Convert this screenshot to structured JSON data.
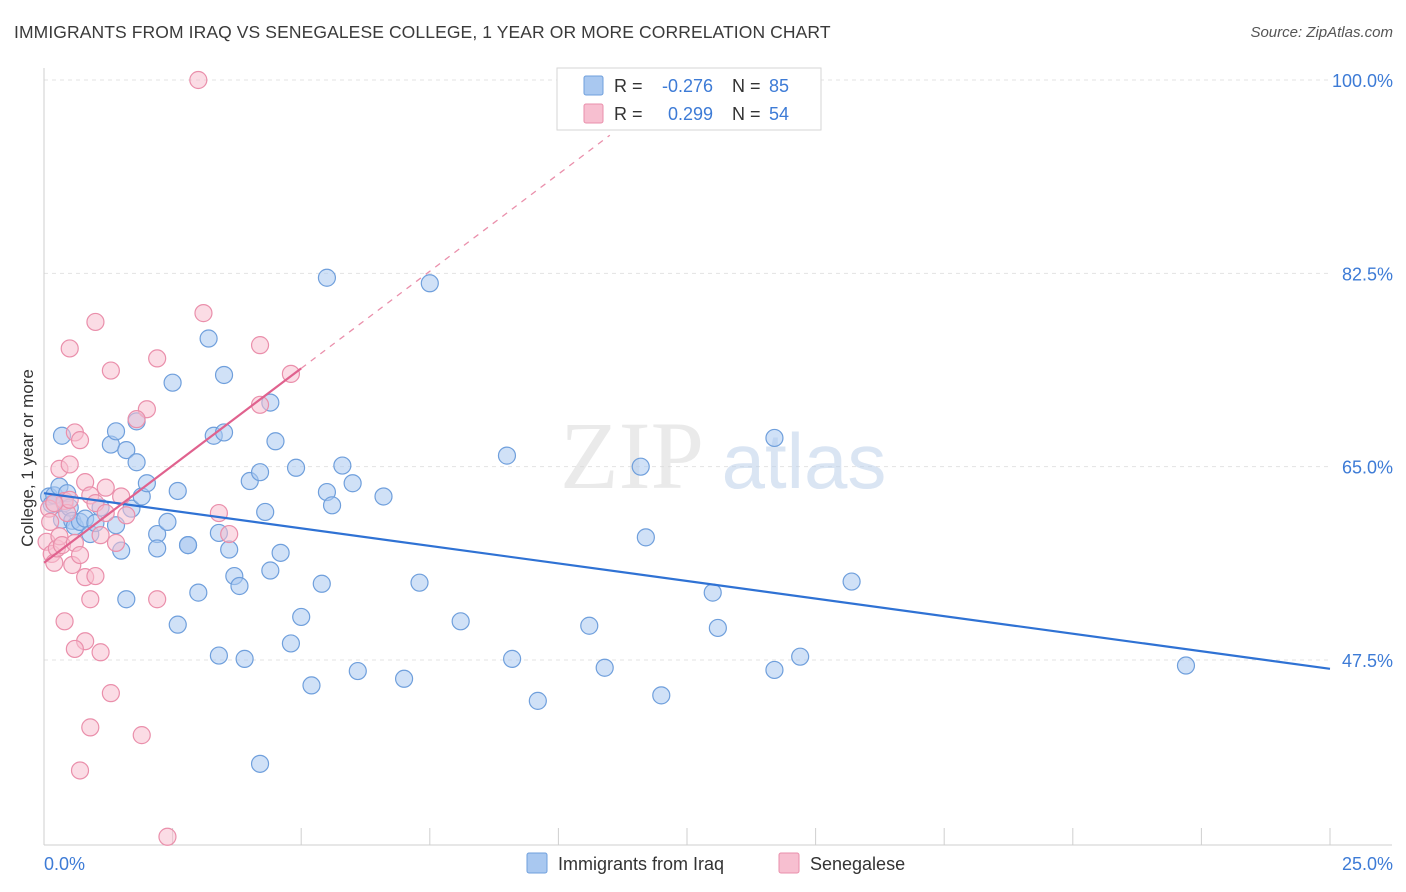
{
  "header": {
    "title": "IMMIGRANTS FROM IRAQ VS SENEGALESE COLLEGE, 1 YEAR OR MORE CORRELATION CHART",
    "source": "Source: ZipAtlas.com"
  },
  "watermark": {
    "zip": "ZIP",
    "atlas": "atlas"
  },
  "legend_box": {
    "rows": [
      {
        "r_label": "R = ",
        "r_value": "-0.276",
        "n_label": "N = ",
        "n_value": "85"
      },
      {
        "r_label": "R = ",
        "r_value": "0.299",
        "n_label": "N = ",
        "n_value": "54"
      }
    ]
  },
  "colors": {
    "iraq_fill": "#a9c8f0",
    "iraq_stroke": "#6f9fdc",
    "iraq_line": "#2f72d4",
    "sen_fill": "#f7bfd0",
    "sen_stroke": "#ea8fab",
    "sen_line": "#e0628e",
    "value_text": "#3d7bd6",
    "grid": "#e3e3e3"
  },
  "chart_data": {
    "type": "scatter",
    "title": "IMMIGRANTS FROM IRAQ VS SENEGALESE COLLEGE, 1 YEAR OR MORE CORRELATION CHART",
    "xlabel": "",
    "ylabel": "College, 1 year or more",
    "xlim": [
      0,
      25
    ],
    "ylim": [
      31,
      101.5
    ],
    "x_tick_labels": [
      "0.0%",
      "25.0%"
    ],
    "y_ticks": [
      47.5,
      65.0,
      82.5,
      100.0
    ],
    "y_tick_labels": [
      "47.5%",
      "65.0%",
      "82.5%",
      "100.0%"
    ],
    "grid": true,
    "legend_position": "bottom",
    "series": [
      {
        "name": "Immigrants from Iraq",
        "r": -0.276,
        "n": 85,
        "trend": {
          "x": [
            0,
            25
          ],
          "y": [
            62.6,
            46.7
          ]
        },
        "points": [
          [
            0.1,
            62.3
          ],
          [
            0.15,
            61.6
          ],
          [
            0.2,
            62.4
          ],
          [
            0.3,
            63.2
          ],
          [
            0.35,
            60.2
          ],
          [
            0.4,
            61.7
          ],
          [
            0.45,
            62.6
          ],
          [
            0.5,
            61.3
          ],
          [
            0.55,
            60.1
          ],
          [
            0.6,
            59.6
          ],
          [
            0.7,
            60.0
          ],
          [
            0.8,
            60.3
          ],
          [
            0.9,
            58.9
          ],
          [
            1.0,
            59.9
          ],
          [
            1.1,
            61.3
          ],
          [
            0.35,
            67.8
          ],
          [
            1.3,
            67.0
          ],
          [
            1.4,
            68.2
          ],
          [
            1.6,
            66.5
          ],
          [
            1.8,
            69.1
          ],
          [
            1.5,
            57.4
          ],
          [
            1.6,
            53.0
          ],
          [
            1.7,
            61.2
          ],
          [
            1.8,
            65.4
          ],
          [
            1.9,
            62.3
          ],
          [
            2.0,
            63.5
          ],
          [
            2.2,
            58.9
          ],
          [
            2.4,
            60.0
          ],
          [
            2.6,
            62.8
          ],
          [
            2.8,
            57.9
          ],
          [
            3.0,
            53.6
          ],
          [
            3.2,
            76.6
          ],
          [
            3.3,
            67.8
          ],
          [
            3.5,
            68.1
          ],
          [
            3.4,
            59.0
          ],
          [
            3.6,
            57.5
          ],
          [
            3.7,
            55.1
          ],
          [
            3.8,
            54.2
          ],
          [
            4.0,
            63.7
          ],
          [
            4.2,
            64.5
          ],
          [
            4.3,
            60.9
          ],
          [
            4.4,
            55.6
          ],
          [
            4.5,
            67.3
          ],
          [
            4.6,
            57.2
          ],
          [
            4.8,
            49.0
          ],
          [
            5.0,
            51.4
          ],
          [
            5.2,
            45.2
          ],
          [
            5.4,
            54.4
          ],
          [
            5.5,
            62.7
          ],
          [
            5.6,
            61.5
          ],
          [
            5.8,
            65.1
          ],
          [
            6.0,
            63.5
          ],
          [
            6.1,
            46.5
          ],
          [
            7.0,
            45.8
          ],
          [
            7.3,
            54.5
          ],
          [
            8.1,
            51.0
          ],
          [
            9.0,
            66.0
          ],
          [
            9.6,
            43.8
          ],
          [
            10.9,
            46.8
          ],
          [
            11.7,
            58.6
          ],
          [
            12.0,
            44.3
          ],
          [
            13.0,
            53.6
          ],
          [
            13.1,
            50.4
          ],
          [
            14.2,
            67.6
          ],
          [
            14.7,
            47.8
          ],
          [
            14.2,
            46.6
          ],
          [
            11.6,
            65.0
          ],
          [
            9.1,
            47.6
          ],
          [
            5.5,
            82.1
          ],
          [
            4.4,
            70.8
          ],
          [
            3.5,
            73.3
          ],
          [
            2.5,
            72.6
          ],
          [
            2.2,
            57.6
          ],
          [
            1.4,
            59.7
          ],
          [
            7.5,
            81.6
          ],
          [
            15.7,
            54.6
          ],
          [
            10.6,
            50.6
          ],
          [
            6.6,
            62.3
          ],
          [
            3.4,
            47.9
          ],
          [
            4.9,
            64.9
          ],
          [
            3.9,
            47.6
          ],
          [
            2.8,
            57.9
          ],
          [
            4.2,
            38.1
          ],
          [
            22.2,
            47.0
          ],
          [
            2.6,
            50.7
          ]
        ]
      },
      {
        "name": "Senegalese",
        "r": 0.299,
        "n": 54,
        "trend": {
          "x": [
            0,
            5
          ],
          "y": [
            56.3,
            73.9
          ]
        },
        "trend_extension": {
          "x": [
            5,
            11
          ],
          "y": [
            73.9,
            95.0
          ]
        },
        "points": [
          [
            0.05,
            58.2
          ],
          [
            0.1,
            61.2
          ],
          [
            0.12,
            60.0
          ],
          [
            0.15,
            57.1
          ],
          [
            0.2,
            56.3
          ],
          [
            0.25,
            57.6
          ],
          [
            0.3,
            58.7
          ],
          [
            0.35,
            57.9
          ],
          [
            0.4,
            61.9
          ],
          [
            0.45,
            60.8
          ],
          [
            0.5,
            62.0
          ],
          [
            0.55,
            56.1
          ],
          [
            0.6,
            58.1
          ],
          [
            0.7,
            57.0
          ],
          [
            0.8,
            55.0
          ],
          [
            0.9,
            53.0
          ],
          [
            1.0,
            55.1
          ],
          [
            1.1,
            58.8
          ],
          [
            1.2,
            63.1
          ],
          [
            0.2,
            61.7
          ],
          [
            0.3,
            64.8
          ],
          [
            0.5,
            65.2
          ],
          [
            0.6,
            68.1
          ],
          [
            0.7,
            67.4
          ],
          [
            0.8,
            63.6
          ],
          [
            0.9,
            62.4
          ],
          [
            1.0,
            61.7
          ],
          [
            1.2,
            60.8
          ],
          [
            1.4,
            58.1
          ],
          [
            1.5,
            62.3
          ],
          [
            1.6,
            60.6
          ],
          [
            0.5,
            75.7
          ],
          [
            1.0,
            78.1
          ],
          [
            2.2,
            74.8
          ],
          [
            1.3,
            73.7
          ],
          [
            2.0,
            70.2
          ],
          [
            1.8,
            69.3
          ],
          [
            3.4,
            60.8
          ],
          [
            3.6,
            58.9
          ],
          [
            3.1,
            78.9
          ],
          [
            4.2,
            70.6
          ],
          [
            4.8,
            73.4
          ],
          [
            2.2,
            53.0
          ],
          [
            0.8,
            49.2
          ],
          [
            1.1,
            48.2
          ],
          [
            1.3,
            44.5
          ],
          [
            0.9,
            41.4
          ],
          [
            0.7,
            37.5
          ],
          [
            1.9,
            40.7
          ],
          [
            2.4,
            31.5
          ],
          [
            4.2,
            76.0
          ],
          [
            3.0,
            100.0
          ],
          [
            0.4,
            51.0
          ],
          [
            0.6,
            48.5
          ]
        ]
      }
    ]
  }
}
